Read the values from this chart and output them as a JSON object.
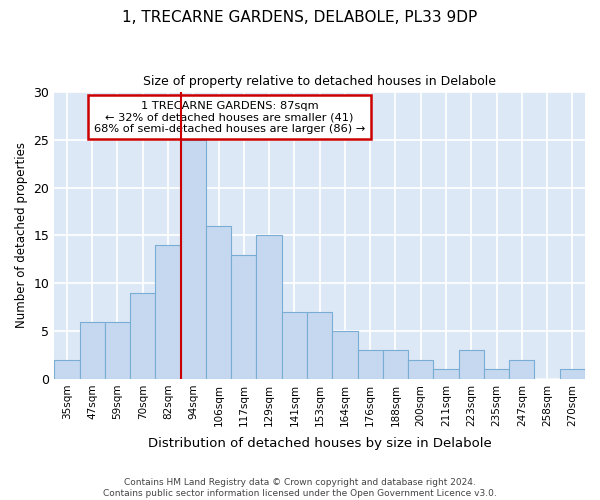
{
  "title": "1, TRECARNE GARDENS, DELABOLE, PL33 9DP",
  "subtitle": "Size of property relative to detached houses in Delabole",
  "xlabel": "Distribution of detached houses by size in Delabole",
  "ylabel": "Number of detached properties",
  "bar_color": "#c5d8f0",
  "bar_edge_color": "#7aadd4",
  "background_color": "#dce8f5",
  "grid_color": "#ffffff",
  "categories": [
    "35sqm",
    "47sqm",
    "59sqm",
    "70sqm",
    "82sqm",
    "94sqm",
    "106sqm",
    "117sqm",
    "129sqm",
    "141sqm",
    "153sqm",
    "164sqm",
    "176sqm",
    "188sqm",
    "200sqm",
    "211sqm",
    "223sqm",
    "235sqm",
    "247sqm",
    "258sqm",
    "270sqm"
  ],
  "values": [
    2,
    6,
    6,
    9,
    14,
    25,
    16,
    13,
    15,
    7,
    7,
    5,
    3,
    3,
    2,
    1,
    3,
    1,
    2,
    0,
    1
  ],
  "ylim": [
    0,
    30
  ],
  "yticks": [
    0,
    5,
    10,
    15,
    20,
    25,
    30
  ],
  "red_line_bin": 5,
  "annotation_title": "1 TRECARNE GARDENS: 87sqm",
  "annotation_line1": "← 32% of detached houses are smaller (41)",
  "annotation_line2": "68% of semi-detached houses are larger (86) →",
  "annotation_box_color": "#ffffff",
  "annotation_box_edge": "#cc0000",
  "red_line_color": "#cc0000",
  "footer1": "Contains HM Land Registry data © Crown copyright and database right 2024.",
  "footer2": "Contains public sector information licensed under the Open Government Licence v3.0."
}
